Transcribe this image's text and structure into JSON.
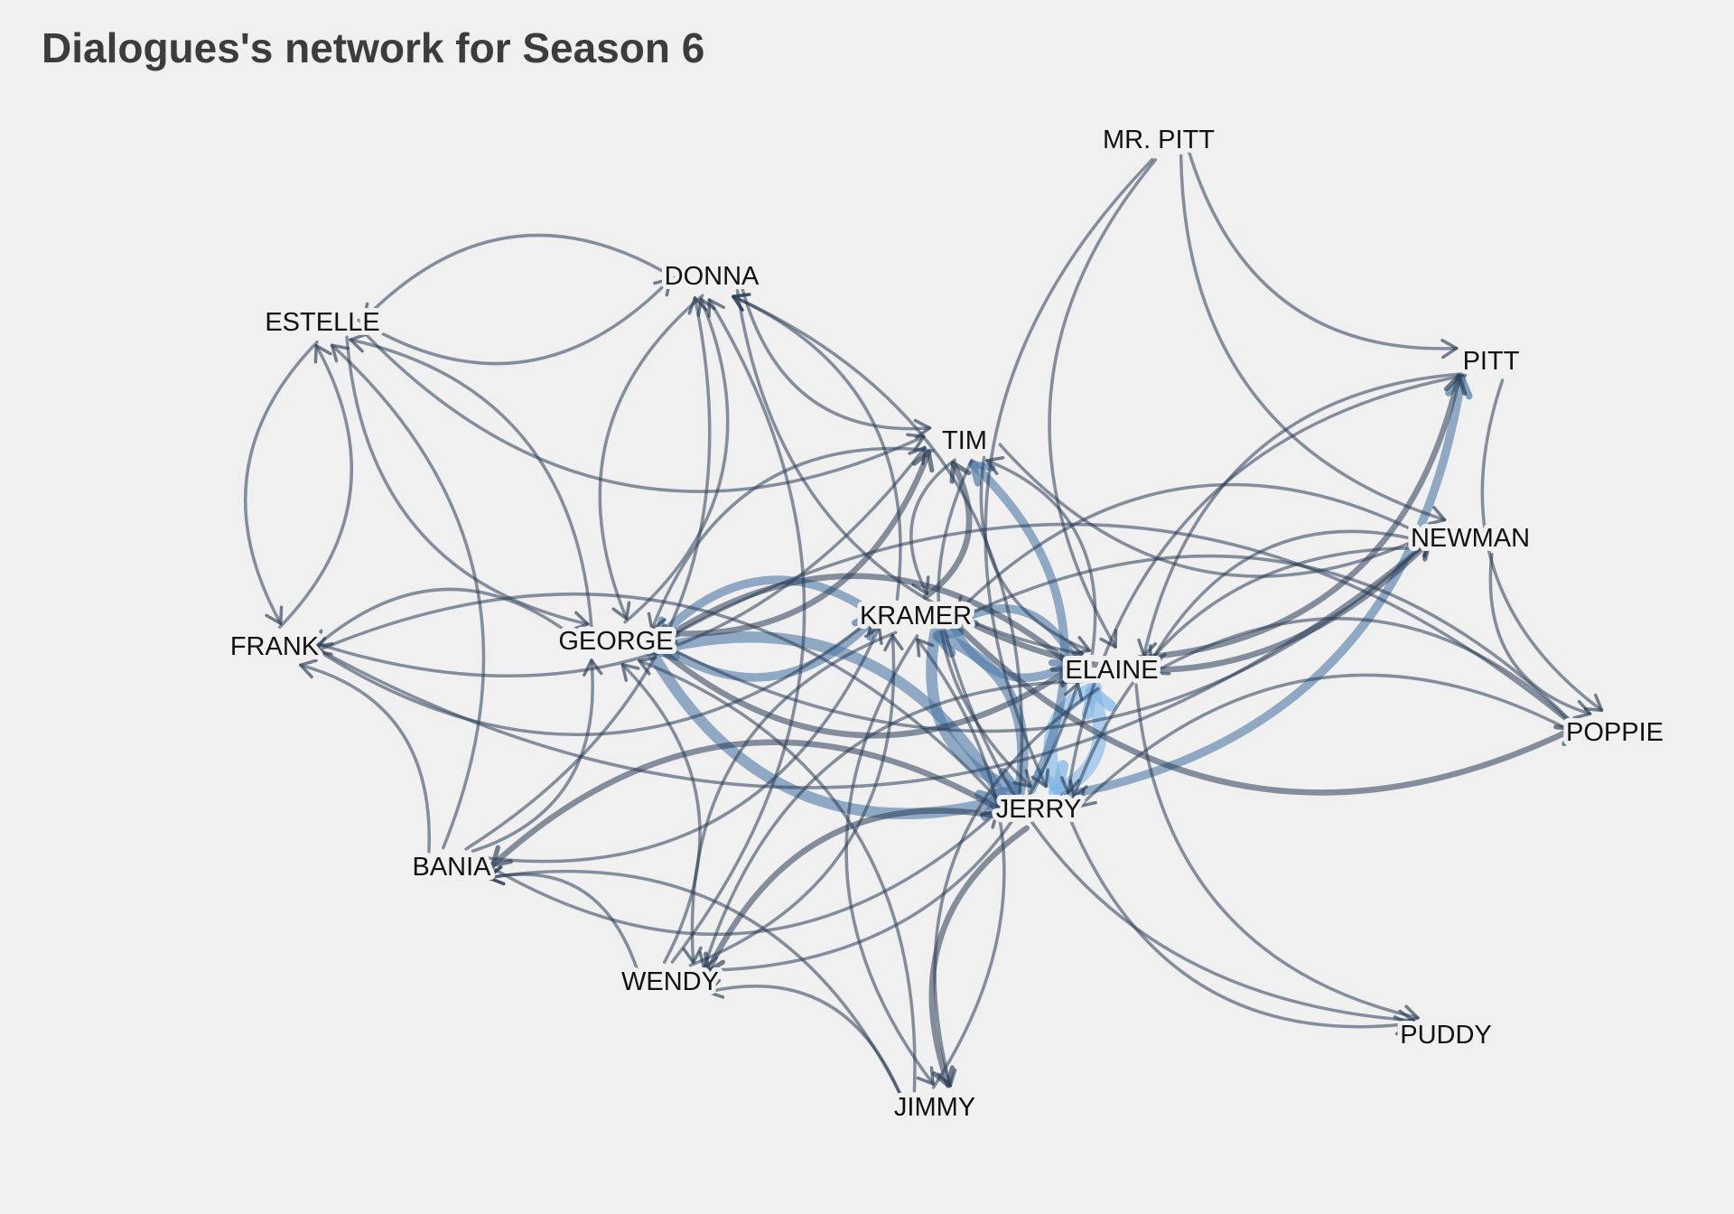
{
  "title": "Dialogues's network for Season 6",
  "colors": {
    "background": "#f0f0f0",
    "edge_dark": "#2a3d55",
    "edge_mid": "#4f7aa6",
    "edge_light": "#7db4e6",
    "label": "#111111"
  },
  "nodes": [
    {
      "id": "MR. PITT",
      "label": "MR. PITT"
    },
    {
      "id": "DONNA",
      "label": "DONNA"
    },
    {
      "id": "ESTELLE",
      "label": "ESTELLE"
    },
    {
      "id": "PITT",
      "label": "PITT"
    },
    {
      "id": "TIM",
      "label": "TIM"
    },
    {
      "id": "NEWMAN",
      "label": "NEWMAN"
    },
    {
      "id": "KRAMER",
      "label": "KRAMER"
    },
    {
      "id": "GEORGE",
      "label": "GEORGE"
    },
    {
      "id": "FRANK",
      "label": "FRANK"
    },
    {
      "id": "ELAINE",
      "label": "ELAINE"
    },
    {
      "id": "POPPIE",
      "label": "POPPIE"
    },
    {
      "id": "JERRY",
      "label": "JERRY"
    },
    {
      "id": "BANIA",
      "label": "BANIA"
    },
    {
      "id": "WENDY",
      "label": "WENDY"
    },
    {
      "id": "PUDDY",
      "label": "PUDDY"
    },
    {
      "id": "JIMMY",
      "label": "JIMMY"
    }
  ],
  "edges": [
    {
      "from": "JERRY",
      "to": "ELAINE",
      "weight": 5
    },
    {
      "from": "ELAINE",
      "to": "JERRY",
      "weight": 5
    },
    {
      "from": "JERRY",
      "to": "GEORGE",
      "weight": 4
    },
    {
      "from": "GEORGE",
      "to": "JERRY",
      "weight": 4
    },
    {
      "from": "JERRY",
      "to": "KRAMER",
      "weight": 4
    },
    {
      "from": "KRAMER",
      "to": "JERRY",
      "weight": 4
    },
    {
      "from": "JERRY",
      "to": "TIM",
      "weight": 3
    },
    {
      "from": "JERRY",
      "to": "PITT",
      "weight": 3
    },
    {
      "from": "KRAMER",
      "to": "ELAINE",
      "weight": 3
    },
    {
      "from": "ELAINE",
      "to": "KRAMER",
      "weight": 3
    },
    {
      "from": "GEORGE",
      "to": "KRAMER",
      "weight": 3
    },
    {
      "from": "KRAMER",
      "to": "GEORGE",
      "weight": 3
    },
    {
      "from": "GEORGE",
      "to": "ELAINE",
      "weight": 2
    },
    {
      "from": "ELAINE",
      "to": "GEORGE",
      "weight": 2
    },
    {
      "from": "GEORGE",
      "to": "TIM",
      "weight": 2
    },
    {
      "from": "KRAMER",
      "to": "TIM",
      "weight": 2
    },
    {
      "from": "TIM",
      "to": "KRAMER",
      "weight": 1
    },
    {
      "from": "TIM",
      "to": "ELAINE",
      "weight": 1
    },
    {
      "from": "ELAINE",
      "to": "TIM",
      "weight": 1
    },
    {
      "from": "TIM",
      "to": "JERRY",
      "weight": 1
    },
    {
      "from": "TIM",
      "to": "GEORGE",
      "weight": 1
    },
    {
      "from": "ELAINE",
      "to": "PITT",
      "weight": 2
    },
    {
      "from": "PITT",
      "to": "ELAINE",
      "weight": 1
    },
    {
      "from": "PITT",
      "to": "JERRY",
      "weight": 1
    },
    {
      "from": "PITT",
      "to": "POPPIE",
      "weight": 1
    },
    {
      "from": "MR. PITT",
      "to": "PITT",
      "weight": 1
    },
    {
      "from": "MR. PITT",
      "to": "ELAINE",
      "weight": 1
    },
    {
      "from": "MR. PITT",
      "to": "JERRY",
      "weight": 1
    },
    {
      "from": "MR. PITT",
      "to": "NEWMAN",
      "weight": 1
    },
    {
      "from": "DONNA",
      "to": "ESTELLE",
      "weight": 1
    },
    {
      "from": "ESTELLE",
      "to": "DONNA",
      "weight": 1
    },
    {
      "from": "DONNA",
      "to": "TIM",
      "weight": 1
    },
    {
      "from": "DONNA",
      "to": "GEORGE",
      "weight": 1
    },
    {
      "from": "GEORGE",
      "to": "DONNA",
      "weight": 1
    },
    {
      "from": "DONNA",
      "to": "ELAINE",
      "weight": 1
    },
    {
      "from": "KRAMER",
      "to": "DONNA",
      "weight": 1
    },
    {
      "from": "JERRY",
      "to": "DONNA",
      "weight": 1
    },
    {
      "from": "ESTELLE",
      "to": "TIM",
      "weight": 1
    },
    {
      "from": "ESTELLE",
      "to": "GEORGE",
      "weight": 1
    },
    {
      "from": "GEORGE",
      "to": "ESTELLE",
      "weight": 1
    },
    {
      "from": "FRANK",
      "to": "ESTELLE",
      "weight": 1
    },
    {
      "from": "ESTELLE",
      "to": "FRANK",
      "weight": 1
    },
    {
      "from": "FRANK",
      "to": "TIM",
      "weight": 1
    },
    {
      "from": "FRANK",
      "to": "NEWMAN",
      "weight": 1
    },
    {
      "from": "FRANK",
      "to": "KRAMER",
      "weight": 1
    },
    {
      "from": "GEORGE",
      "to": "FRANK",
      "weight": 1
    },
    {
      "from": "JERRY",
      "to": "FRANK",
      "weight": 1
    },
    {
      "from": "BANIA",
      "to": "FRANK",
      "weight": 1
    },
    {
      "from": "BANIA",
      "to": "ESTELLE",
      "weight": 1
    },
    {
      "from": "BANIA",
      "to": "GEORGE",
      "weight": 1
    },
    {
      "from": "BANIA",
      "to": "JERRY",
      "weight": 1
    },
    {
      "from": "BANIA",
      "to": "KRAMER",
      "weight": 1
    },
    {
      "from": "BANIA",
      "to": "DONNA",
      "weight": 1
    },
    {
      "from": "JERRY",
      "to": "BANIA",
      "weight": 2
    },
    {
      "from": "WENDY",
      "to": "BANIA",
      "weight": 1
    },
    {
      "from": "WENDY",
      "to": "GEORGE",
      "weight": 1
    },
    {
      "from": "WENDY",
      "to": "KRAMER",
      "weight": 1
    },
    {
      "from": "WENDY",
      "to": "DONNA",
      "weight": 1
    },
    {
      "from": "WENDY",
      "to": "ELAINE",
      "weight": 1
    },
    {
      "from": "JERRY",
      "to": "WENDY",
      "weight": 2
    },
    {
      "from": "ELAINE",
      "to": "WENDY",
      "weight": 1
    },
    {
      "from": "KRAMER",
      "to": "WENDY",
      "weight": 1
    },
    {
      "from": "JIMMY",
      "to": "WENDY",
      "weight": 1
    },
    {
      "from": "JIMMY",
      "to": "BANIA",
      "weight": 1
    },
    {
      "from": "JIMMY",
      "to": "GEORGE",
      "weight": 1
    },
    {
      "from": "JIMMY",
      "to": "KRAMER",
      "weight": 1
    },
    {
      "from": "JERRY",
      "to": "JIMMY",
      "weight": 2
    },
    {
      "from": "ELAINE",
      "to": "JIMMY",
      "weight": 1
    },
    {
      "from": "KRAMER",
      "to": "JIMMY",
      "weight": 1
    },
    {
      "from": "NEWMAN",
      "to": "ELAINE",
      "weight": 1
    },
    {
      "from": "NEWMAN",
      "to": "JERRY",
      "weight": 1
    },
    {
      "from": "NEWMAN",
      "to": "KRAMER",
      "weight": 1
    },
    {
      "from": "NEWMAN",
      "to": "POPPIE",
      "weight": 1
    },
    {
      "from": "KRAMER",
      "to": "NEWMAN",
      "weight": 2
    },
    {
      "from": "GEORGE",
      "to": "NEWMAN",
      "weight": 1
    },
    {
      "from": "TIM",
      "to": "NEWMAN",
      "weight": 1
    },
    {
      "from": "POPPIE",
      "to": "JERRY",
      "weight": 1
    },
    {
      "from": "POPPIE",
      "to": "ELAINE",
      "weight": 1
    },
    {
      "from": "POPPIE",
      "to": "KRAMER",
      "weight": 1
    },
    {
      "from": "POPPIE",
      "to": "GEORGE",
      "weight": 1
    },
    {
      "from": "KRAMER",
      "to": "POPPIE",
      "weight": 2
    },
    {
      "from": "ELAINE",
      "to": "PUDDY",
      "weight": 1
    },
    {
      "from": "KRAMER",
      "to": "PUDDY",
      "weight": 1
    },
    {
      "from": "JERRY",
      "to": "PUDDY",
      "weight": 1
    }
  ]
}
